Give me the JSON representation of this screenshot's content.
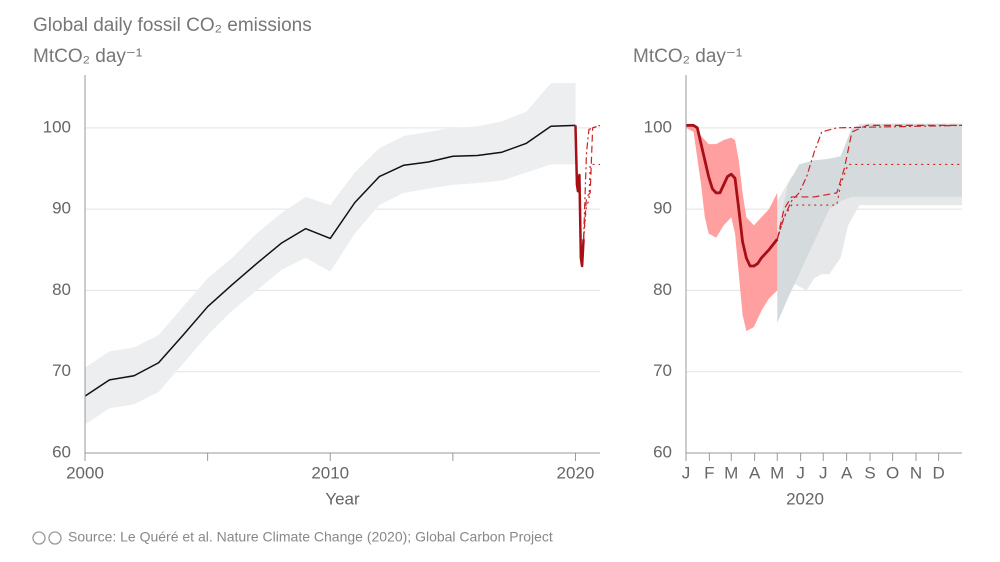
{
  "chart_data": [
    {
      "type": "line",
      "title": "Global daily fossil CO₂ emissions",
      "ylabel": "MtCO₂ day⁻¹",
      "xlabel": "Year",
      "xlim": [
        2000,
        2021
      ],
      "xticks": [
        2000,
        2010,
        2020
      ],
      "xminor": [
        2005,
        2015
      ],
      "ylim": [
        60,
        106.5
      ],
      "yticks": [
        60,
        70,
        80,
        90,
        100
      ],
      "grid": true,
      "bands": [
        {
          "color": "#eceeef",
          "x": [
            2000,
            2001,
            2002,
            2003,
            2004,
            2005,
            2006,
            2007,
            2008,
            2009,
            2010,
            2011,
            2012,
            2013,
            2014,
            2015,
            2016,
            2017,
            2018,
            2019,
            2020
          ],
          "upper": [
            70.5,
            72.5,
            73,
            74.5,
            78,
            81.5,
            84,
            87,
            89.5,
            91.5,
            90.5,
            94.5,
            97.5,
            99,
            99.5,
            100,
            100.2,
            100.8,
            102,
            105.5,
            105.5
          ],
          "lower": [
            63.5,
            65.5,
            66,
            67.5,
            71,
            74.5,
            77.5,
            80,
            82.5,
            84,
            82.3,
            87,
            90.5,
            92,
            92.5,
            93,
            93.2,
            93.5,
            94.5,
            95.5,
            95.5
          ]
        }
      ],
      "series": [
        {
          "color": "#111111",
          "width": 1.5,
          "dash": "solid",
          "x": [
            2000,
            2001,
            2002,
            2003,
            2004,
            2005,
            2006,
            2007,
            2008,
            2009,
            2010,
            2011,
            2012,
            2013,
            2014,
            2015,
            2016,
            2017,
            2018,
            2019,
            2020
          ],
          "values": [
            67.0,
            69.0,
            69.5,
            71.1,
            74.5,
            78.0,
            80.7,
            83.3,
            85.8,
            87.6,
            86.4,
            90.8,
            94.0,
            95.4,
            95.8,
            96.5,
            96.6,
            97.0,
            98.1,
            100.2,
            100.3
          ]
        },
        {
          "color": "#cc2222",
          "width": 1.2,
          "dash": "dashdot",
          "x": [
            2020.33,
            2020.45,
            2020.55,
            2021
          ],
          "values": [
            86.3,
            97,
            99.8,
            100.3
          ]
        },
        {
          "color": "#cc2222",
          "width": 1.2,
          "dash": "dash",
          "x": [
            2020.33,
            2020.45,
            2020.6,
            2020.7,
            2021
          ],
          "values": [
            86.3,
            91.5,
            92,
            100,
            100.3
          ]
        },
        {
          "color": "#cc2222",
          "width": 1.2,
          "dash": "dot",
          "x": [
            2020.33,
            2020.45,
            2020.55,
            2020.6,
            2021
          ],
          "values": [
            86.3,
            90.5,
            91,
            95.5,
            95.5
          ]
        },
        {
          "color": "#a50f15",
          "width": 2.5,
          "dash": "solid",
          "x": [
            2020,
            2020.06,
            2020.1,
            2020.16,
            2020.22,
            2020.27,
            2020.33
          ],
          "values": [
            100.3,
            93,
            92.2,
            94.2,
            84,
            83,
            86.3
          ]
        }
      ]
    },
    {
      "type": "line",
      "ylabel": "MtCO₂ day⁻¹",
      "xlabel": "2020",
      "xlim": [
        0,
        366
      ],
      "xticks": [
        {
          "value": 0,
          "label": "J"
        },
        {
          "value": 31,
          "label": "F"
        },
        {
          "value": 60,
          "label": "M"
        },
        {
          "value": 91,
          "label": "A"
        },
        {
          "value": 121,
          "label": "M"
        },
        {
          "value": 152,
          "label": "J"
        },
        {
          "value": 182,
          "label": "J"
        },
        {
          "value": 213,
          "label": "A"
        },
        {
          "value": 244,
          "label": "S"
        },
        {
          "value": 274,
          "label": "O"
        },
        {
          "value": 305,
          "label": "N"
        },
        {
          "value": 335,
          "label": "D"
        }
      ],
      "ylim": [
        60,
        106.5
      ],
      "yticks": [
        60,
        70,
        80,
        90,
        100
      ],
      "grid": true,
      "bands": [
        {
          "color": "#e6e8ea",
          "x": [
            121,
            140,
            160,
            170,
            180,
            190,
            205,
            215,
            230,
            366
          ],
          "upper": [
            91,
            94,
            95.5,
            96,
            96,
            96.2,
            96.5,
            98,
            100.5,
            100.5
          ],
          "lower": [
            80,
            81,
            80,
            81.5,
            82,
            82,
            84,
            88,
            90.5,
            90.5
          ]
        },
        {
          "color": "#d5dadd",
          "x": [
            121,
            135,
            150,
            170,
            190,
            205,
            220,
            240,
            366
          ],
          "upper": [
            87,
            93,
            95.5,
            96,
            96.2,
            96.5,
            100,
            100.5,
            100.5
          ],
          "lower": [
            76,
            79,
            82,
            86,
            90,
            91,
            91.5,
            91.5,
            91.5
          ]
        },
        {
          "color": "#ff9f9f",
          "x": [
            0,
            10,
            20,
            25,
            30,
            40,
            50,
            60,
            65,
            70,
            75,
            80,
            90,
            100,
            110,
            121
          ],
          "upper": [
            100.5,
            100.5,
            99,
            98.5,
            98,
            98,
            98.5,
            98.8,
            98.5,
            96,
            92,
            89,
            88,
            89,
            90,
            92
          ],
          "lower": [
            100,
            99.5,
            93,
            89,
            87,
            86.5,
            88,
            89,
            87,
            82,
            77,
            75,
            75.5,
            77.5,
            79,
            80
          ]
        }
      ],
      "series": [
        {
          "color": "#cc2222",
          "width": 1.2,
          "dash": "dashdot",
          "x": [
            121,
            130,
            140,
            150,
            160,
            170,
            180,
            200,
            366
          ],
          "values": [
            86.3,
            89,
            91,
            92,
            94,
            97,
            99.5,
            100,
            100.3
          ]
        },
        {
          "color": "#cc2222",
          "width": 1.2,
          "dash": "dash",
          "x": [
            121,
            130,
            140,
            170,
            200,
            210,
            220,
            240,
            366
          ],
          "values": [
            86.3,
            90,
            91.5,
            91.5,
            92,
            95,
            99.5,
            100.3,
            100.3
          ]
        },
        {
          "color": "#cc2222",
          "width": 1.2,
          "dash": "dot",
          "x": [
            121,
            130,
            140,
            200,
            205,
            215,
            366
          ],
          "values": [
            86.3,
            89,
            90.5,
            90.5,
            93,
            95.5,
            95.5
          ]
        },
        {
          "color": "#a50f15",
          "width": 2.8,
          "dash": "solid",
          "x": [
            0,
            10,
            15,
            20,
            25,
            30,
            35,
            40,
            45,
            50,
            55,
            60,
            65,
            70,
            75,
            80,
            85,
            90,
            95,
            100,
            110,
            121
          ],
          "values": [
            100.3,
            100.3,
            100,
            98,
            96,
            94,
            92.5,
            92,
            92,
            93,
            94,
            94.3,
            93.8,
            90,
            86,
            84,
            83,
            83,
            83.3,
            84,
            85,
            86.3
          ]
        }
      ]
    }
  ],
  "source": "Source: Le Quéré et al. Nature Climate Change (2020); Global Carbon Project"
}
